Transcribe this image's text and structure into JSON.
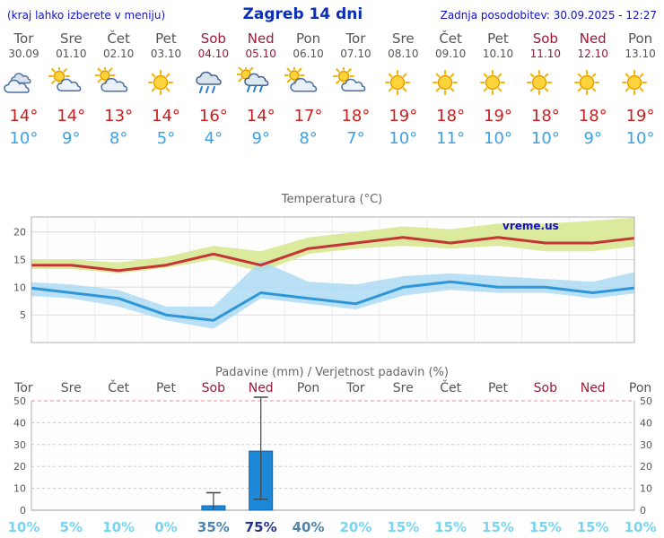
{
  "header": {
    "left_note": "(kraj lahko izberete v meniju)",
    "title": "Zagreb 14 dni",
    "updated_label": "Zadnja posodobitev: 30.09.2025 - 12:27"
  },
  "watermark": "vreme.us",
  "strip": {
    "degree_symbol": "°",
    "days": [
      {
        "name": "Tor",
        "date": "30.09",
        "weekend": false,
        "icon": "cloudy",
        "tmax": "14",
        "tmin": "10"
      },
      {
        "name": "Sre",
        "date": "01.10",
        "weekend": false,
        "icon": "partly",
        "tmax": "14",
        "tmin": "9"
      },
      {
        "name": "Čet",
        "date": "02.10",
        "weekend": false,
        "icon": "mostly-cloudy",
        "tmax": "13",
        "tmin": "8"
      },
      {
        "name": "Pet",
        "date": "03.10",
        "weekend": false,
        "icon": "sunny",
        "tmax": "14",
        "tmin": "5"
      },
      {
        "name": "Sob",
        "date": "04.10",
        "weekend": true,
        "icon": "rain",
        "tmax": "16",
        "tmin": "4"
      },
      {
        "name": "Ned",
        "date": "05.10",
        "weekend": true,
        "icon": "rain-sun",
        "tmax": "14",
        "tmin": "9"
      },
      {
        "name": "Pon",
        "date": "06.10",
        "weekend": false,
        "icon": "mostly-cloudy",
        "tmax": "17",
        "tmin": "8"
      },
      {
        "name": "Tor",
        "date": "07.10",
        "weekend": false,
        "icon": "partly",
        "tmax": "18",
        "tmin": "7"
      },
      {
        "name": "Sre",
        "date": "08.10",
        "weekend": false,
        "icon": "sunny",
        "tmax": "19",
        "tmin": "10"
      },
      {
        "name": "Čet",
        "date": "09.10",
        "weekend": false,
        "icon": "sunny",
        "tmax": "18",
        "tmin": "11"
      },
      {
        "name": "Pet",
        "date": "10.10",
        "weekend": false,
        "icon": "sunny",
        "tmax": "19",
        "tmin": "10"
      },
      {
        "name": "Sob",
        "date": "11.10",
        "weekend": true,
        "icon": "sunny",
        "tmax": "18",
        "tmin": "10"
      },
      {
        "name": "Ned",
        "date": "12.10",
        "weekend": true,
        "icon": "sunny",
        "tmax": "18",
        "tmin": "9"
      },
      {
        "name": "Pon",
        "date": "13.10",
        "weekend": false,
        "icon": "sunny",
        "tmax": "19",
        "tmin": "10"
      }
    ]
  },
  "chart_data": [
    {
      "type": "line",
      "title": "Temperatura (°C)",
      "categories": [
        "Tor",
        "Sre",
        "Čet",
        "Pet",
        "Sob",
        "Ned",
        "Pon",
        "Tor",
        "Sre",
        "Čet",
        "Pet",
        "Sob",
        "Ned",
        "Pon"
      ],
      "series": [
        {
          "name": "tmax",
          "values": [
            14,
            14,
            13,
            14,
            16,
            14,
            17,
            18,
            19,
            18,
            19,
            18,
            18,
            19
          ],
          "color": "#c43535"
        },
        {
          "name": "tmax_upper",
          "values": [
            15,
            15,
            14.5,
            15.5,
            17.5,
            16.5,
            19,
            20,
            21,
            20.5,
            21.5,
            21.5,
            22,
            22.7
          ]
        },
        {
          "name": "tmax_lower",
          "values": [
            13.3,
            13.3,
            12.5,
            13.5,
            15,
            12.8,
            16,
            17,
            17.5,
            17,
            17.5,
            16.5,
            16.5,
            17.5
          ]
        },
        {
          "name": "tmin",
          "values": [
            10,
            9,
            8,
            5,
            4,
            9,
            8,
            7,
            10,
            11,
            10,
            10,
            9,
            10
          ],
          "color": "#2f97d8"
        },
        {
          "name": "tmin_upper",
          "values": [
            11,
            10.5,
            9.5,
            6.5,
            6.5,
            14.8,
            11,
            10.5,
            12,
            12.5,
            12,
            11.5,
            11,
            13
          ]
        },
        {
          "name": "tmin_lower",
          "values": [
            8.5,
            8,
            6.5,
            4,
            2.5,
            8,
            7,
            6,
            8.5,
            9.5,
            9,
            9,
            8,
            9
          ]
        }
      ],
      "ylim": [
        0,
        22.7
      ],
      "yticks": [
        5,
        10,
        15,
        20
      ],
      "band_colors": {
        "max": "#dcea9e",
        "min": "#a9d9f2"
      },
      "grid": true,
      "legend": "none"
    },
    {
      "type": "bar",
      "title": "Padavine (mm) / Verjetnost padavin (%)",
      "categories": [
        "Tor",
        "Sre",
        "Čet",
        "Pet",
        "Sob",
        "Ned",
        "Pon",
        "Tor",
        "Sre",
        "Čet",
        "Pet",
        "Sob",
        "Ned",
        "Pon"
      ],
      "precip_mm": [
        0,
        0,
        0,
        0,
        2,
        27,
        0,
        0,
        0,
        0,
        0,
        0,
        0,
        0
      ],
      "precip_range": [
        [
          0,
          0
        ],
        [
          0,
          0
        ],
        [
          0,
          0
        ],
        [
          0,
          0
        ],
        [
          0,
          8
        ],
        [
          5,
          52
        ],
        [
          0,
          0
        ],
        [
          0,
          0
        ],
        [
          0,
          0
        ],
        [
          0,
          0
        ],
        [
          0,
          0
        ],
        [
          0,
          0
        ],
        [
          0,
          0
        ],
        [
          0,
          0
        ]
      ],
      "probability_pct": [
        10,
        5,
        10,
        0,
        35,
        75,
        40,
        20,
        15,
        15,
        15,
        15,
        15,
        10
      ],
      "unit": "%",
      "ylim": [
        0,
        50
      ],
      "yticks": [
        0,
        10,
        20,
        30,
        40,
        50
      ],
      "bar_color": "#1e88d8",
      "grid": true,
      "legend": "none"
    }
  ],
  "colors": {
    "link_blue": "#1111cc",
    "title_blue": "#0a2fb4",
    "day_gray": "#555555",
    "weekend_red": "#9a1a38",
    "tmax_red": "#cc2020",
    "tmin_blue": "#3aa2e8",
    "prob_low": "#79d4f0",
    "prob_mid": "#4e84ad",
    "prob_high": "#26348f"
  }
}
